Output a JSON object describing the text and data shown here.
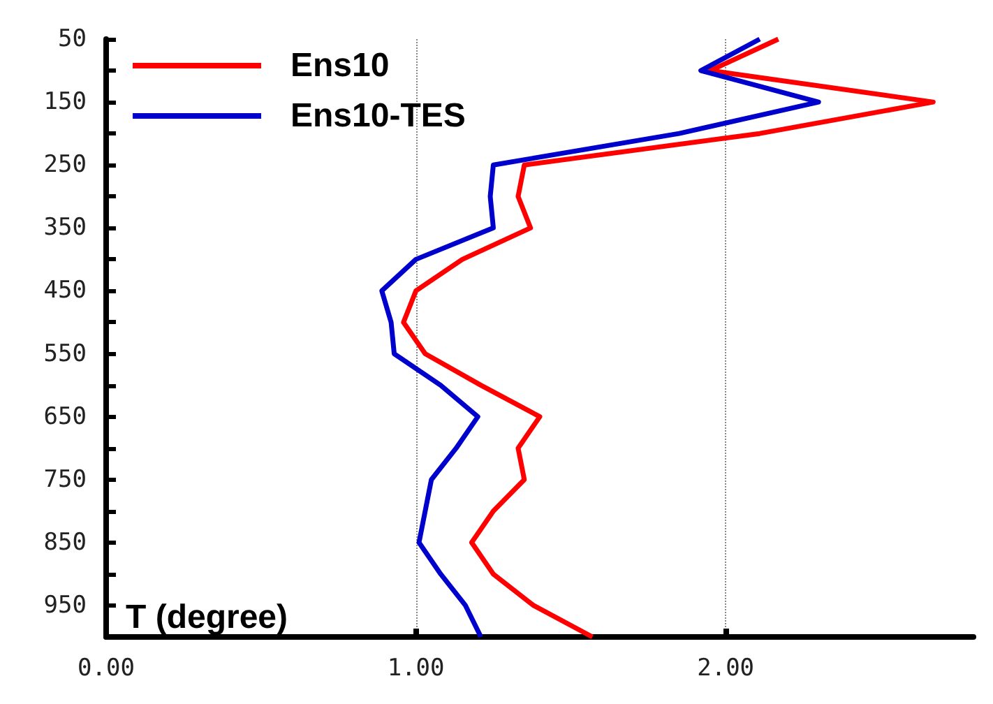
{
  "chart_data": {
    "type": "line",
    "xlim": [
      0,
      2.8
    ],
    "xticks": [
      {
        "value": 0,
        "label": "0.00"
      },
      {
        "value": 1,
        "label": "1.00"
      },
      {
        "value": 2,
        "label": "2.00"
      }
    ],
    "ylim": [
      1000,
      50
    ],
    "yticks": [
      50,
      {
        "value": 100,
        "label": null
      },
      150,
      {
        "value": 200,
        "label": null
      },
      250,
      {
        "value": 300,
        "label": null
      },
      350,
      {
        "value": 400,
        "label": null
      },
      450,
      {
        "value": 500,
        "label": null
      },
      550,
      {
        "value": 600,
        "label": null
      },
      650,
      {
        "value": 700,
        "label": null
      },
      750,
      {
        "value": 800,
        "label": null
      },
      850,
      {
        "value": 900,
        "label": null
      },
      950,
      {
        "value": 1000,
        "label": null
      }
    ],
    "grid": "x",
    "legend": "top left",
    "annotations": [
      "T (degree)"
    ],
    "series": [
      {
        "name": "Ens10",
        "color": "#ff0000",
        "x": [
          2.17,
          1.95,
          2.67,
          2.11,
          1.35,
          1.33,
          1.37,
          1.15,
          1.0,
          0.96,
          1.03,
          1.21,
          1.4,
          1.33,
          1.35,
          1.25,
          1.18,
          1.25,
          1.38,
          1.57
        ],
        "values": [
          50,
          100,
          150,
          200,
          250,
          300,
          350,
          400,
          450,
          500,
          550,
          600,
          650,
          700,
          750,
          800,
          850,
          900,
          950,
          1000
        ]
      },
      {
        "name": "Ens10-TES",
        "color": "#0000cc",
        "x": [
          2.11,
          1.92,
          2.3,
          1.85,
          1.25,
          1.24,
          1.25,
          1.0,
          0.89,
          0.92,
          0.93,
          1.08,
          1.2,
          1.13,
          1.05,
          1.03,
          1.01,
          1.08,
          1.16,
          1.21
        ],
        "values": [
          50,
          100,
          150,
          200,
          250,
          300,
          350,
          400,
          450,
          500,
          550,
          600,
          650,
          700,
          750,
          800,
          850,
          900,
          950,
          1000
        ]
      }
    ]
  }
}
